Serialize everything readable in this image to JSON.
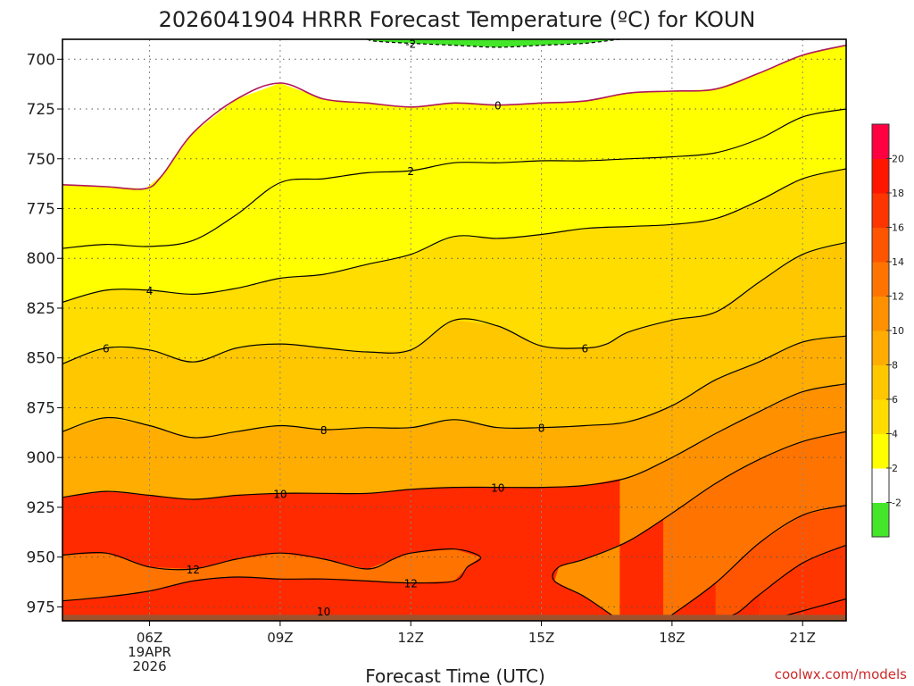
{
  "chart_data": {
    "type": "contour",
    "title": "2026041904 HRRR Forecast Temperature (ºC) for KOUN",
    "xlabel": "Forecast Time (UTC)",
    "ylabel": "",
    "credit": "coolwx.com/models",
    "x_unit": "hours (UTC)",
    "x_range": [
      4,
      22
    ],
    "y_unit": "hPa",
    "y_range": [
      690,
      982
    ],
    "y_scale": "pressure (inverted)",
    "y_ticks": [
      700,
      725,
      750,
      775,
      800,
      825,
      850,
      875,
      900,
      925,
      950,
      975
    ],
    "x_ticks": [
      {
        "x": 6,
        "label": "06Z",
        "sub1": "19APR",
        "sub2": "2026"
      },
      {
        "x": 9,
        "label": "09Z"
      },
      {
        "x": 12,
        "label": "12Z"
      },
      {
        "x": 15,
        "label": "15Z"
      },
      {
        "x": 18,
        "label": "18Z"
      },
      {
        "x": 21,
        "label": "21Z"
      }
    ],
    "grid": true,
    "ground_color": "#a0522d",
    "colorbar": {
      "levels": [
        -2,
        2,
        4,
        6,
        8,
        10,
        12,
        14,
        16,
        18,
        20
      ],
      "labels": [
        "-2",
        "2",
        "4",
        "6",
        "8",
        "10",
        "12",
        "14",
        "16",
        "18",
        "20"
      ],
      "colors": [
        "#44e62a",
        "#ffffff",
        "#ffff00",
        "#ffdd00",
        "#ffc700",
        "#ffad00",
        "#ff9100",
        "#ff7400",
        "#ff5400",
        "#ff3500",
        "#ff1600",
        "#ff0040"
      ]
    },
    "contours": [
      {
        "level": -2,
        "label": "-2",
        "dashed": true,
        "color": "#000000",
        "fill": "#44e62a",
        "points": [
          [
            11.0,
            690
          ],
          [
            11.2,
            691
          ],
          [
            12.0,
            692
          ],
          [
            13.0,
            693
          ],
          [
            14.0,
            694
          ],
          [
            15.0,
            693
          ],
          [
            16.0,
            692
          ],
          [
            16.8,
            690
          ]
        ]
      },
      {
        "level": 0,
        "label": "0",
        "color": "#b0175a",
        "points": [
          [
            4.0,
            763
          ],
          [
            5.0,
            764
          ],
          [
            5.9,
            765
          ],
          [
            6.3,
            758
          ],
          [
            7.0,
            737
          ],
          [
            8.0,
            720
          ],
          [
            9.0,
            712
          ],
          [
            10.0,
            720
          ],
          [
            11.0,
            722
          ],
          [
            12.0,
            724
          ],
          [
            13.0,
            722
          ],
          [
            14.0,
            723
          ],
          [
            15.0,
            722
          ],
          [
            16.0,
            721
          ],
          [
            17.0,
            717
          ],
          [
            18.0,
            716
          ],
          [
            19.0,
            715
          ],
          [
            20.0,
            707
          ],
          [
            21.0,
            698
          ],
          [
            22.0,
            693
          ]
        ]
      },
      {
        "level": 2,
        "label": "2",
        "color": "#000000",
        "points": [
          [
            4.0,
            795
          ],
          [
            5.0,
            793
          ],
          [
            6.0,
            794
          ],
          [
            7.0,
            791
          ],
          [
            8.0,
            778
          ],
          [
            9.0,
            762
          ],
          [
            10.0,
            760
          ],
          [
            11.0,
            757
          ],
          [
            12.0,
            756
          ],
          [
            13.0,
            752
          ],
          [
            14.0,
            752
          ],
          [
            15.0,
            751
          ],
          [
            16.0,
            751
          ],
          [
            17.0,
            750
          ],
          [
            18.0,
            749
          ],
          [
            19.0,
            747
          ],
          [
            20.0,
            740
          ],
          [
            21.0,
            729
          ],
          [
            22.0,
            725
          ]
        ]
      },
      {
        "level": 4,
        "label": "4",
        "color": "#000000",
        "points": [
          [
            4.0,
            822
          ],
          [
            5.0,
            816
          ],
          [
            6.0,
            816
          ],
          [
            7.0,
            818
          ],
          [
            8.0,
            815
          ],
          [
            9.0,
            810
          ],
          [
            10.0,
            808
          ],
          [
            11.0,
            803
          ],
          [
            12.0,
            798
          ],
          [
            13.0,
            789
          ],
          [
            14.0,
            790
          ],
          [
            15.0,
            788
          ],
          [
            16.0,
            785
          ],
          [
            17.0,
            784
          ],
          [
            18.0,
            783
          ],
          [
            19.0,
            780
          ],
          [
            20.0,
            771
          ],
          [
            21.0,
            760
          ],
          [
            22.0,
            755
          ]
        ]
      },
      {
        "level": 6,
        "label": "6",
        "color": "#000000",
        "points": [
          [
            4.0,
            853
          ],
          [
            5.0,
            845
          ],
          [
            6.0,
            846
          ],
          [
            7.0,
            852
          ],
          [
            8.0,
            845
          ],
          [
            9.0,
            843
          ],
          [
            10.0,
            845
          ],
          [
            11.0,
            847
          ],
          [
            12.0,
            846
          ],
          [
            13.0,
            831
          ],
          [
            14.0,
            834
          ],
          [
            15.0,
            844
          ],
          [
            16.0,
            845
          ],
          [
            16.5,
            843
          ],
          [
            17.0,
            837
          ],
          [
            18.0,
            831
          ],
          [
            19.0,
            827
          ],
          [
            20.0,
            812
          ],
          [
            21.0,
            798
          ],
          [
            22.0,
            792
          ]
        ]
      },
      {
        "level": 8,
        "label": "8",
        "color": "#000000",
        "points": [
          [
            4.0,
            887
          ],
          [
            5.0,
            880
          ],
          [
            6.0,
            884
          ],
          [
            7.0,
            890
          ],
          [
            8.0,
            887
          ],
          [
            9.0,
            884
          ],
          [
            10.0,
            886
          ],
          [
            11.0,
            885
          ],
          [
            12.0,
            885
          ],
          [
            13.0,
            881
          ],
          [
            14.0,
            885
          ],
          [
            15.0,
            885
          ],
          [
            16.0,
            884
          ],
          [
            17.0,
            882
          ],
          [
            18.0,
            874
          ],
          [
            19.0,
            861
          ],
          [
            20.0,
            852
          ],
          [
            21.0,
            842
          ],
          [
            22.0,
            839
          ]
        ]
      },
      {
        "level": 10,
        "label": "10",
        "color": "#000000",
        "points": [
          [
            4.0,
            920
          ],
          [
            5.0,
            917
          ],
          [
            6.0,
            919
          ],
          [
            7.0,
            921
          ],
          [
            8.0,
            919
          ],
          [
            9.0,
            918
          ],
          [
            10.0,
            918
          ],
          [
            11.0,
            918
          ],
          [
            12.0,
            916
          ],
          [
            13.0,
            915
          ],
          [
            14.0,
            915
          ],
          [
            15.0,
            915
          ],
          [
            16.0,
            914
          ],
          [
            17.0,
            910
          ],
          [
            18.0,
            900
          ],
          [
            19.0,
            888
          ],
          [
            20.0,
            877
          ],
          [
            21.0,
            867
          ],
          [
            22.0,
            863
          ]
        ]
      },
      {
        "level": 12,
        "label": "12",
        "color": "#000000",
        "points": [
          [
            16.8,
            982
          ],
          [
            16.0,
            970
          ],
          [
            15.3,
            962
          ],
          [
            15.4,
            955
          ],
          [
            16.0,
            951
          ],
          [
            17.0,
            942
          ],
          [
            18.0,
            928
          ],
          [
            19.0,
            913
          ],
          [
            20.0,
            901
          ],
          [
            21.0,
            892
          ],
          [
            22.0,
            887
          ]
        ]
      },
      {
        "level": 14,
        "label": "14",
        "color": "#000000",
        "points": [
          [
            17.8,
            982
          ],
          [
            18.0,
            979
          ],
          [
            19.0,
            963
          ],
          [
            20.0,
            943
          ],
          [
            21.0,
            929
          ],
          [
            22.0,
            924
          ]
        ]
      },
      {
        "level": 16,
        "label": "16",
        "color": "#000000",
        "points": [
          [
            19.0,
            982
          ],
          [
            19.5,
            978
          ],
          [
            20.0,
            969
          ],
          [
            21.0,
            953
          ],
          [
            22.0,
            944
          ]
        ]
      },
      {
        "level": 18,
        "label": "18",
        "color": "#000000",
        "points": [
          [
            20.0,
            982
          ],
          [
            20.5,
            980
          ],
          [
            21.0,
            977
          ],
          [
            22.0,
            971
          ]
        ]
      }
    ],
    "closed_contours": [
      {
        "level": 12,
        "label": "12",
        "color": "#000000",
        "points": [
          [
            4.0,
            949
          ],
          [
            5.0,
            948
          ],
          [
            6.0,
            955
          ],
          [
            7.0,
            956
          ],
          [
            8.0,
            951
          ],
          [
            9.0,
            948
          ],
          [
            10.0,
            951
          ],
          [
            11.0,
            956
          ],
          [
            11.6,
            951
          ],
          [
            12.0,
            948
          ],
          [
            13.0,
            946
          ],
          [
            13.6,
            950
          ],
          [
            13.3,
            955
          ],
          [
            13.0,
            962
          ],
          [
            12.0,
            963
          ],
          [
            11.0,
            962
          ],
          [
            10.0,
            961
          ],
          [
            9.0,
            961
          ],
          [
            8.0,
            960
          ],
          [
            7.0,
            962
          ],
          [
            6.0,
            967
          ],
          [
            5.0,
            970
          ],
          [
            4.0,
            972
          ]
        ]
      }
    ],
    "labels": [
      {
        "text": "-2",
        "x": 12.0,
        "y": 692
      },
      {
        "text": "0",
        "x": 14.0,
        "y": 723
      },
      {
        "text": "2",
        "x": 12.0,
        "y": 756
      },
      {
        "text": "4",
        "x": 6.0,
        "y": 816
      },
      {
        "text": "6",
        "x": 5.0,
        "y": 845
      },
      {
        "text": "6",
        "x": 16.0,
        "y": 845
      },
      {
        "text": "8",
        "x": 10.0,
        "y": 886
      },
      {
        "text": "8",
        "x": 15.0,
        "y": 885
      },
      {
        "text": "10",
        "x": 9.0,
        "y": 918
      },
      {
        "text": "10",
        "x": 14.0,
        "y": 915
      },
      {
        "text": "12",
        "x": 7.0,
        "y": 956
      },
      {
        "text": "12",
        "x": 12.0,
        "y": 963
      },
      {
        "text": "10",
        "x": 10.0,
        "y": 977
      }
    ]
  }
}
